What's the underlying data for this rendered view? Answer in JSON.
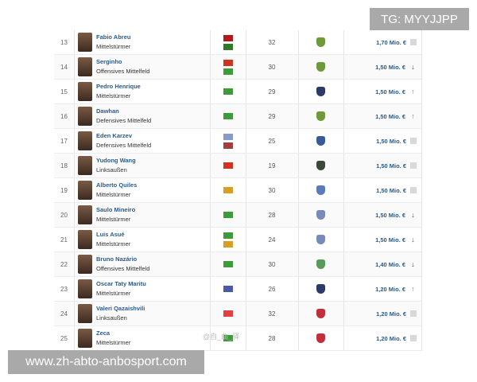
{
  "watermarks": {
    "top": "TG: MYYJJPP",
    "bottom": "www.zh-abto-anbosport.com",
    "weibo": "@自_曲_驿"
  },
  "trend_colors": {
    "up": "#6a9a2a",
    "down": "#b0202a",
    "neutral": "#d8d8d8"
  },
  "rows": [
    {
      "rank": "13",
      "name": "Fabio Abreu",
      "position": "Mittelstürmer",
      "flags": [
        "#b01a1a",
        "#2f7a2a"
      ],
      "age": "32",
      "club_color": "#6e9a3a",
      "value": "1,70 Mio. €",
      "trend": "neutral"
    },
    {
      "rank": "14",
      "name": "Serginho",
      "position": "Offensives Mittelfeld",
      "flags": [
        "#d0331f",
        "#3f9a3a"
      ],
      "age": "30",
      "club_color": "#6e9a3a",
      "value": "1,50 Mio. €",
      "trend": "down"
    },
    {
      "rank": "15",
      "name": "Pedro Henrique",
      "position": "Mittelstürmer",
      "flags": [
        "#3f9a3a"
      ],
      "age": "29",
      "club_color": "#2c3a6a",
      "value": "1,50 Mio. €",
      "trend": "up"
    },
    {
      "rank": "16",
      "name": "Dawhan",
      "position": "Defensives Mittelfeld",
      "flags": [
        "#3f9a3a"
      ],
      "age": "29",
      "club_color": "#6e9a3a",
      "value": "1,50 Mio. €",
      "trend": "up"
    },
    {
      "rank": "17",
      "name": "Eden Karzev",
      "position": "Defensives Mittelfeld",
      "flags": [
        "#8a9ac8",
        "#a04040"
      ],
      "age": "25",
      "club_color": "#3a5a9a",
      "value": "1,50 Mio. €",
      "trend": "neutral"
    },
    {
      "rank": "18",
      "name": "Yudong Wang",
      "position": "Linksaußen",
      "flags": [
        "#d0331f"
      ],
      "age": "19",
      "club_color": "#3a4a3a",
      "value": "1,50 Mio. €",
      "trend": "neutral"
    },
    {
      "rank": "19",
      "name": "Alberto Quiles",
      "position": "Mittelstürmer",
      "flags": [
        "#d8a020"
      ],
      "age": "30",
      "club_color": "#5a7ab8",
      "value": "1,50 Mio. €",
      "trend": "neutral"
    },
    {
      "rank": "20",
      "name": "Saulo Mineiro",
      "position": "Mittelstürmer",
      "flags": [
        "#3f9a3a"
      ],
      "age": "28",
      "club_color": "#7a8ab8",
      "value": "1,50 Mio. €",
      "trend": "down"
    },
    {
      "rank": "21",
      "name": "Luis Asué",
      "position": "Mittelstürmer",
      "flags": [
        "#3f9a3a",
        "#d8a020"
      ],
      "age": "24",
      "club_color": "#7a8ab8",
      "value": "1,50 Mio. €",
      "trend": "down"
    },
    {
      "rank": "22",
      "name": "Bruno Nazário",
      "position": "Offensives Mittelfeld",
      "flags": [
        "#3f9a3a"
      ],
      "age": "30",
      "club_color": "#5a9a5a",
      "value": "1,40 Mio. €",
      "trend": "down"
    },
    {
      "rank": "23",
      "name": "Oscar Taty Maritu",
      "position": "Mittelstürmer",
      "flags": [
        "#4a5aa8"
      ],
      "age": "26",
      "club_color": "#2c3a6a",
      "value": "1,20 Mio. €",
      "trend": "up"
    },
    {
      "rank": "24",
      "name": "Valeri Qazaishvili",
      "position": "Linksaußen",
      "flags": [
        "#e04040"
      ],
      "age": "32",
      "club_color": "#c0303a",
      "value": "1,20 Mio. €",
      "trend": "neutral"
    },
    {
      "rank": "25",
      "name": "Zeca",
      "position": "Mittelstürmer",
      "flags": [
        "#3f9a3a"
      ],
      "age": "28",
      "club_color": "#c0303a",
      "value": "1,20 Mio. €",
      "trend": "neutral"
    }
  ]
}
